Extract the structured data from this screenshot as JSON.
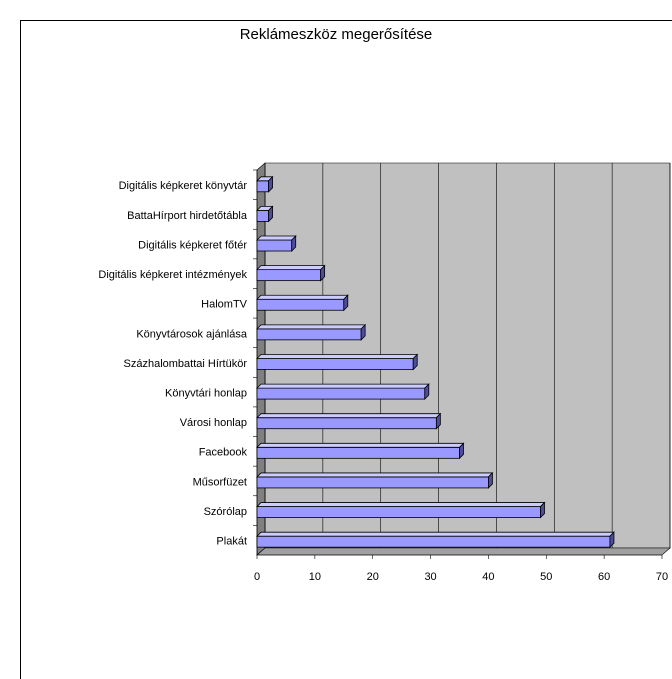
{
  "chart_data": {
    "type": "bar3d_horizontal",
    "title": "Reklámeszköz megerősítése",
    "categories": [
      "Digitális képkeret könyvtár",
      "BattaHírport hirdetőtábla",
      "Digitális képkeret főtér",
      "Digitális képkeret intézmények",
      "HalomTV",
      "Könyvtárosok ajánlása",
      "Százhalombattai Hírtükör",
      "Könyvtári honlap",
      "Városi honlap",
      "Facebook",
      "Műsorfüzet",
      "Szórólap",
      "Plakát"
    ],
    "values": [
      2,
      2,
      6,
      11,
      15,
      18,
      27,
      29,
      31,
      35,
      40,
      49,
      61
    ],
    "color": "#9999ff",
    "xlim": [
      0,
      70
    ],
    "xticks": [
      0,
      10,
      20,
      30,
      40,
      50,
      60,
      70
    ],
    "grid": true
  }
}
